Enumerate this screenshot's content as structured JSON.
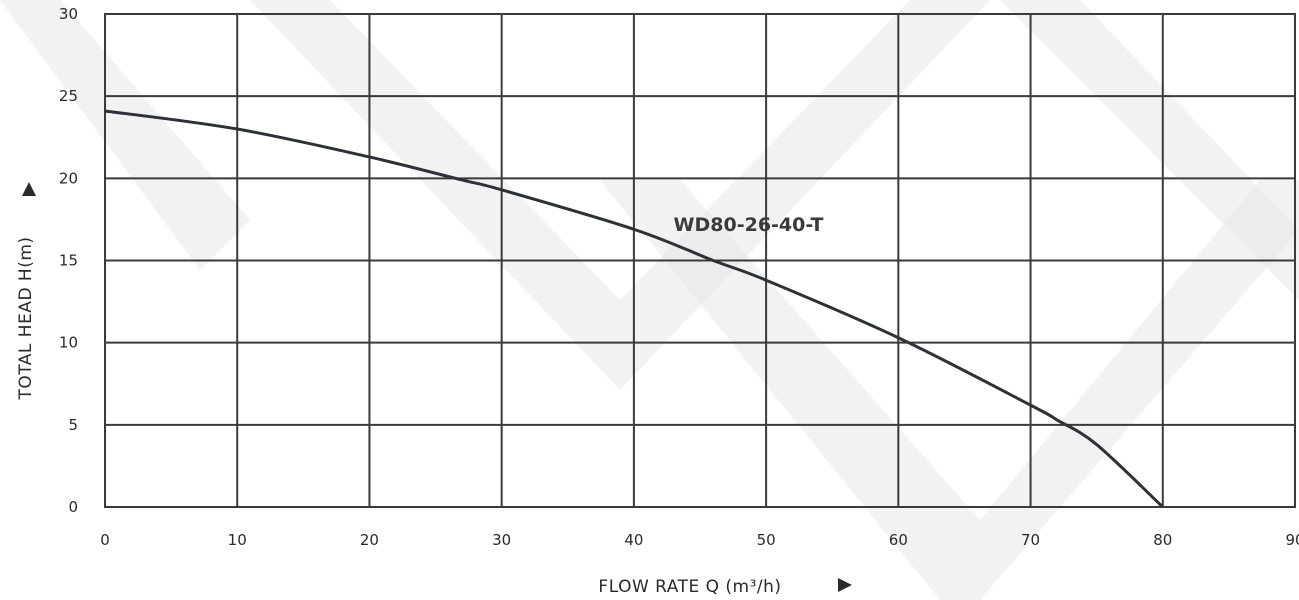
{
  "chart_data": {
    "type": "line",
    "xlabel": "FLOW RATE Q (m³/h)",
    "ylabel": "TOTAL HEAD H(m)",
    "xlim": [
      0,
      90
    ],
    "ylim": [
      0,
      30
    ],
    "x_ticks": [
      0,
      10,
      20,
      30,
      40,
      50,
      60,
      70,
      80,
      90
    ],
    "y_ticks": [
      0,
      5,
      10,
      15,
      20,
      25,
      30
    ],
    "grid": true,
    "series": [
      {
        "name": "WD80-26-40-T",
        "x": [
          0,
          10,
          20,
          27,
          30,
          40,
          46,
          50,
          60,
          70,
          72,
          75,
          80
        ],
        "y": [
          24.1,
          23.0,
          21.3,
          19.9,
          19.3,
          16.9,
          15.0,
          13.8,
          10.3,
          6.2,
          5.3,
          3.8,
          0
        ],
        "color": "#2d3238"
      }
    ],
    "annotations": [
      {
        "text": "WD80-26-40-T",
        "x": 43,
        "y": 16.8
      }
    ]
  }
}
